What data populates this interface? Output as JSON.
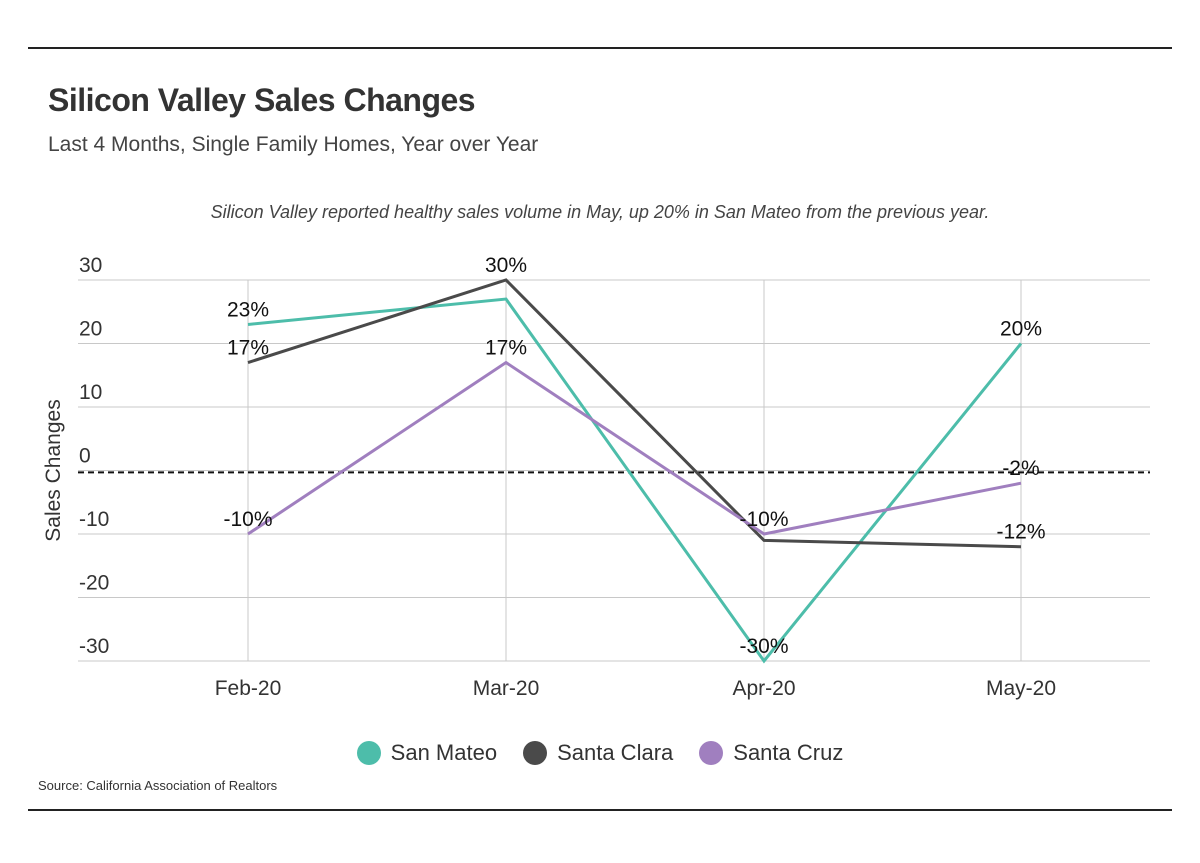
{
  "header": {
    "title": "Silicon Valley Sales Changes",
    "subtitle": "Last 4 Months, Single Family Homes, Year over Year"
  },
  "annotation": "Silicon Valley reported healthy sales volume in May, up 20% in San Mateo from the previous year.",
  "source": "Source:  California Association of Realtors",
  "chart_data": {
    "type": "line",
    "title": "Silicon Valley Sales Changes",
    "subtitle": "Last 4 Months, Single Family Homes, Year over Year",
    "xlabel": "",
    "ylabel": "Sales Changes",
    "categories": [
      "Feb-20",
      "Mar-20",
      "Apr-20",
      "May-20"
    ],
    "ylim": [
      -30,
      30
    ],
    "yticks": [
      30,
      20,
      10,
      0,
      -10,
      -20,
      -30
    ],
    "reference_line": {
      "y": -0.3,
      "style": "dashed",
      "color": "#111111"
    },
    "grid": true,
    "legend_position": "bottom",
    "series": [
      {
        "name": "San Mateo",
        "color": "#4dbdaa",
        "values": [
          23,
          27,
          -30,
          20
        ],
        "labels": [
          "23%",
          "",
          "-30%",
          "20%"
        ]
      },
      {
        "name": "Santa Clara",
        "color": "#4a4a4a",
        "values": [
          17,
          30,
          -11,
          -12
        ],
        "labels": [
          "17%",
          "30%",
          "",
          "-12%"
        ]
      },
      {
        "name": "Santa Cruz",
        "color": "#a07fbf",
        "values": [
          -10,
          17,
          -10,
          -2
        ],
        "labels": [
          "-10%",
          "17%",
          "-10%",
          "-2%"
        ]
      }
    ]
  }
}
